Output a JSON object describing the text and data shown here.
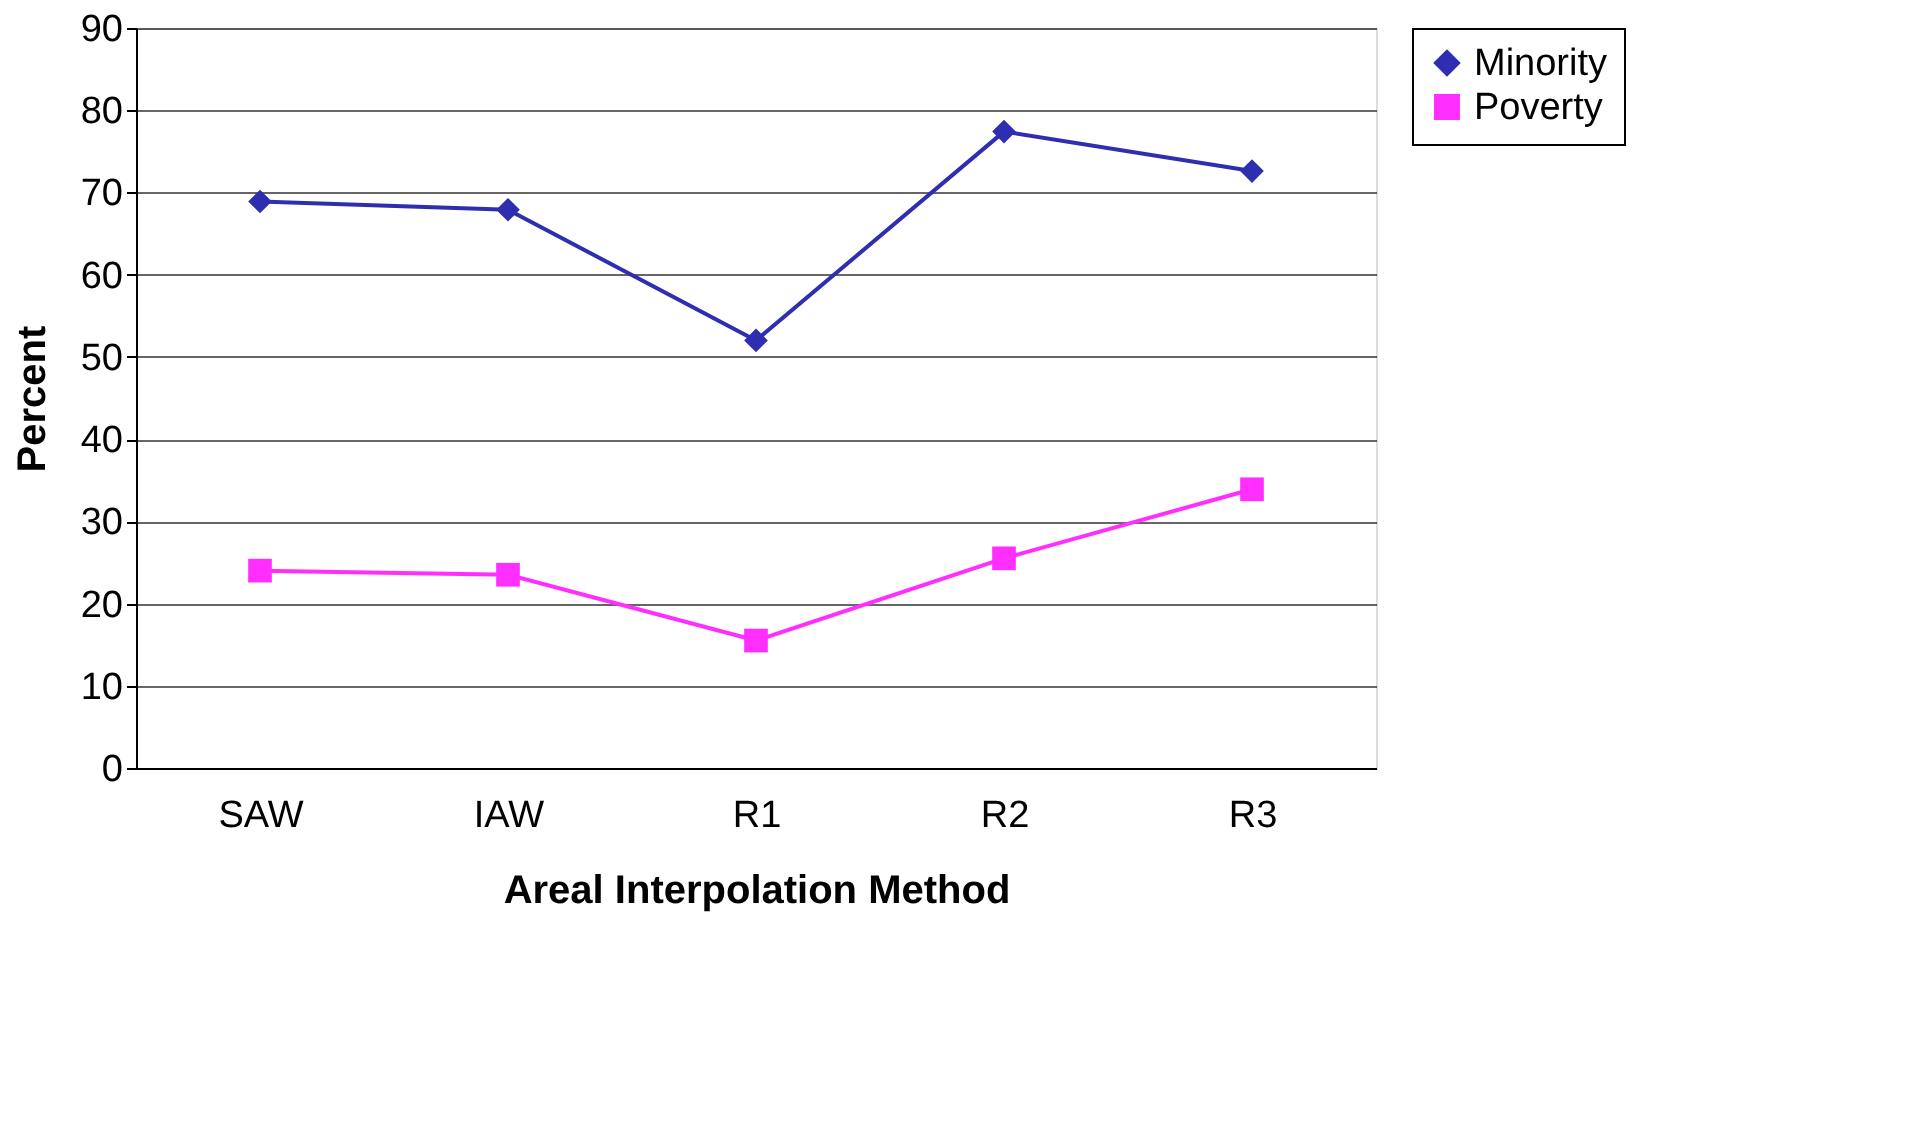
{
  "chart_data": {
    "type": "line",
    "xlabel": "Areal Interpolation Method",
    "ylabel": "Percent",
    "categories": [
      "SAW",
      "IAW",
      "R1",
      "R2",
      "R3"
    ],
    "series": [
      {
        "name": "Minority",
        "color": "#2e2eb0",
        "marker": "diamond",
        "values": [
          68.9,
          67.9,
          52.0,
          77.4,
          72.6
        ]
      },
      {
        "name": "Poverty",
        "color": "#ff2eff",
        "marker": "square",
        "values": [
          24.0,
          23.5,
          15.5,
          25.5,
          33.9
        ]
      }
    ],
    "ylim": [
      0,
      90
    ],
    "yticks": [
      0,
      10,
      20,
      30,
      40,
      50,
      60,
      70,
      80,
      90
    ],
    "grid": "y",
    "legend": "right",
    "line_style": "solid"
  }
}
